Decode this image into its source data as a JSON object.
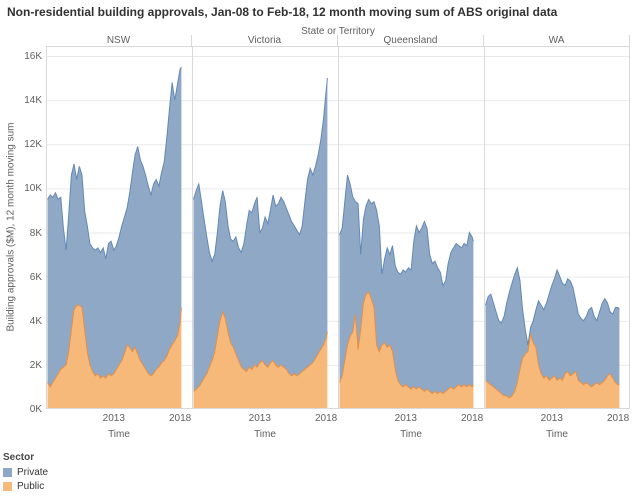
{
  "title": "Non-residential building approvals, Jan-08 to Feb-18, 12 month moving sum of ABS original data",
  "facet_header": "State or Territory",
  "x_axis": {
    "label": "Time",
    "ticks": [
      "2013",
      "2018"
    ],
    "tick_years": [
      2013,
      2018
    ]
  },
  "y_axis": {
    "label": "Building approvals ($M), 12 month moving sum",
    "ticks": [
      "0K",
      "2K",
      "4K",
      "6K",
      "8K",
      "10K",
      "12K",
      "14K",
      "16K"
    ],
    "tick_values": [
      0,
      2,
      4,
      6,
      8,
      10,
      12,
      14,
      16
    ]
  },
  "legend": {
    "title": "Sector",
    "items": [
      {
        "label": "Private",
        "color": "#8FA8C6"
      },
      {
        "label": "Public",
        "color": "#F7B97A"
      }
    ]
  },
  "colors": {
    "private_fill": "#8FA8C6",
    "private_stroke": "#6389B4",
    "public_fill": "#F7B97A",
    "public_stroke": "#E78F44",
    "grid": "#e9e9e9",
    "pane_border": "#d9d9d9",
    "text_gray": "#5f5f5f"
  },
  "chart_data": {
    "type": "area",
    "stacked": true,
    "stack_order": [
      "Public",
      "Private"
    ],
    "time_range": "Jan-2008 to Feb-2018",
    "units": "K = $1,000M, 12 month moving sum",
    "ylim": [
      0,
      16
    ],
    "grid": true,
    "legend_position": "bottom-left",
    "x_unit": "decimal_year",
    "x": [
      2008.0,
      2008.2,
      2008.4,
      2008.6,
      2008.8,
      2009.0,
      2009.2,
      2009.4,
      2009.6,
      2009.8,
      2010.0,
      2010.2,
      2010.4,
      2010.6,
      2010.8,
      2011.0,
      2011.2,
      2011.4,
      2011.6,
      2011.8,
      2012.0,
      2012.2,
      2012.4,
      2012.6,
      2012.8,
      2013.0,
      2013.2,
      2013.4,
      2013.6,
      2013.8,
      2014.0,
      2014.2,
      2014.4,
      2014.6,
      2014.8,
      2015.0,
      2015.2,
      2015.4,
      2015.6,
      2015.8,
      2016.0,
      2016.2,
      2016.4,
      2016.6,
      2016.8,
      2017.0,
      2017.2,
      2017.4,
      2017.6,
      2017.8,
      2018.0,
      2018.1
    ],
    "facets": [
      {
        "label": "NSW",
        "series": {
          "Public": [
            1.2,
            1.0,
            1.2,
            1.4,
            1.6,
            1.8,
            1.9,
            2.0,
            2.6,
            3.6,
            4.5,
            4.7,
            4.7,
            4.6,
            3.6,
            2.6,
            2.0,
            1.7,
            1.5,
            1.6,
            1.4,
            1.5,
            1.4,
            1.6,
            1.5,
            1.6,
            1.8,
            2.0,
            2.2,
            2.5,
            2.9,
            2.8,
            2.6,
            2.8,
            2.5,
            2.2,
            2.0,
            1.8,
            1.6,
            1.5,
            1.6,
            1.8,
            1.9,
            2.1,
            2.2,
            2.4,
            2.7,
            2.9,
            3.1,
            3.3,
            3.9,
            4.6
          ],
          "Private": [
            8.3,
            8.7,
            8.4,
            8.4,
            7.9,
            7.8,
            6.3,
            5.2,
            6.2,
            7.0,
            6.6,
            5.7,
            6.3,
            6.0,
            5.4,
            5.7,
            5.5,
            5.6,
            5.7,
            5.7,
            5.7,
            5.8,
            5.4,
            5.9,
            6.1,
            5.6,
            5.6,
            5.8,
            6.1,
            6.2,
            6.2,
            7.0,
            8.1,
            8.7,
            9.4,
            9.1,
            9.0,
            8.8,
            8.5,
            8.2,
            8.6,
            8.6,
            8.2,
            8.6,
            9.0,
            9.9,
            10.9,
            11.9,
            10.9,
            11.4,
            11.5,
            10.9
          ]
        }
      },
      {
        "label": "Victoria",
        "series": {
          "Public": [
            0.8,
            0.9,
            1.0,
            1.2,
            1.4,
            1.6,
            1.9,
            2.2,
            2.6,
            3.3,
            4.0,
            4.4,
            4.1,
            3.5,
            3.0,
            2.8,
            2.5,
            2.2,
            1.9,
            1.8,
            1.7,
            1.9,
            1.8,
            2.0,
            1.9,
            2.1,
            2.2,
            2.0,
            1.9,
            2.1,
            2.2,
            2.0,
            1.9,
            2.0,
            1.9,
            1.8,
            1.6,
            1.5,
            1.6,
            1.5,
            1.6,
            1.7,
            1.8,
            1.9,
            2.0,
            2.1,
            2.3,
            2.5,
            2.7,
            2.9,
            3.2,
            3.5
          ],
          "Private": [
            8.7,
            9.0,
            9.2,
            8.2,
            7.2,
            6.2,
            5.2,
            4.5,
            4.4,
            4.7,
            5.2,
            5.5,
            5.3,
            4.8,
            4.7,
            4.8,
            5.3,
            5.1,
            5.2,
            5.7,
            6.6,
            7.1,
            7.1,
            7.3,
            7.7,
            5.9,
            6.0,
            6.7,
            6.5,
            6.9,
            7.5,
            7.2,
            7.4,
            7.6,
            7.5,
            7.3,
            7.2,
            7.0,
            6.7,
            6.6,
            6.3,
            6.6,
            7.6,
            8.5,
            8.9,
            8.5,
            8.7,
            9.0,
            9.5,
            10.2,
            11.2,
            11.5
          ]
        }
      },
      {
        "label": "Queensland",
        "series": {
          "Public": [
            1.2,
            1.5,
            2.2,
            2.9,
            3.3,
            3.5,
            4.3,
            2.7,
            3.6,
            4.8,
            5.2,
            5.3,
            5.0,
            4.6,
            2.9,
            2.6,
            2.9,
            3.0,
            2.8,
            2.9,
            2.6,
            1.8,
            1.3,
            1.1,
            1.0,
            1.1,
            1.0,
            0.9,
            1.0,
            0.9,
            1.0,
            0.9,
            0.8,
            0.9,
            0.8,
            0.7,
            0.8,
            0.7,
            0.8,
            0.7,
            0.8,
            0.9,
            1.0,
            0.9,
            1.0,
            1.1,
            1.0,
            1.1,
            1.0,
            1.1,
            1.0,
            1.1
          ],
          "Private": [
            6.7,
            6.7,
            7.2,
            7.7,
            6.9,
            6.1,
            5.1,
            6.6,
            3.4,
            3.8,
            4.0,
            4.2,
            4.3,
            4.8,
            6.1,
            5.7,
            3.2,
            3.8,
            4.5,
            4.1,
            4.8,
            4.7,
            4.9,
            5.0,
            5.3,
            5.1,
            5.4,
            5.4,
            6.6,
            7.4,
            7.0,
            7.3,
            7.7,
            7.3,
            6.2,
            5.9,
            5.9,
            5.7,
            5.4,
            4.9,
            5.0,
            5.7,
            6.1,
            6.4,
            6.5,
            6.3,
            6.3,
            6.4,
            6.4,
            6.9,
            6.8,
            6.5
          ]
        }
      },
      {
        "label": "WA",
        "series": {
          "Public": [
            1.3,
            1.2,
            1.1,
            1.0,
            0.9,
            0.8,
            0.7,
            0.6,
            0.6,
            0.5,
            0.6,
            0.8,
            1.2,
            1.8,
            2.3,
            2.5,
            2.6,
            3.4,
            3.0,
            2.8,
            2.0,
            1.6,
            1.4,
            1.5,
            1.3,
            1.4,
            1.5,
            1.3,
            1.4,
            1.3,
            1.6,
            1.7,
            1.5,
            1.6,
            1.7,
            1.3,
            1.2,
            1.1,
            1.2,
            1.1,
            1.0,
            1.1,
            1.2,
            1.1,
            1.2,
            1.3,
            1.5,
            1.6,
            1.4,
            1.2,
            1.1,
            1.1
          ],
          "Private": [
            3.4,
            3.9,
            4.1,
            3.8,
            3.5,
            3.2,
            3.2,
            3.6,
            4.2,
            4.8,
            5.1,
            5.3,
            5.2,
            4.0,
            2.2,
            1.1,
            0.3,
            0.3,
            1.0,
            1.7,
            2.9,
            3.1,
            3.1,
            3.3,
            3.9,
            4.2,
            4.4,
            5.0,
            4.6,
            4.4,
            4.0,
            4.2,
            4.3,
            3.9,
            3.2,
            3.0,
            2.9,
            2.9,
            3.0,
            3.4,
            3.6,
            3.1,
            2.8,
            3.3,
            3.6,
            3.7,
            3.3,
            2.8,
            2.9,
            3.4,
            3.5,
            3.4
          ]
        }
      }
    ]
  }
}
